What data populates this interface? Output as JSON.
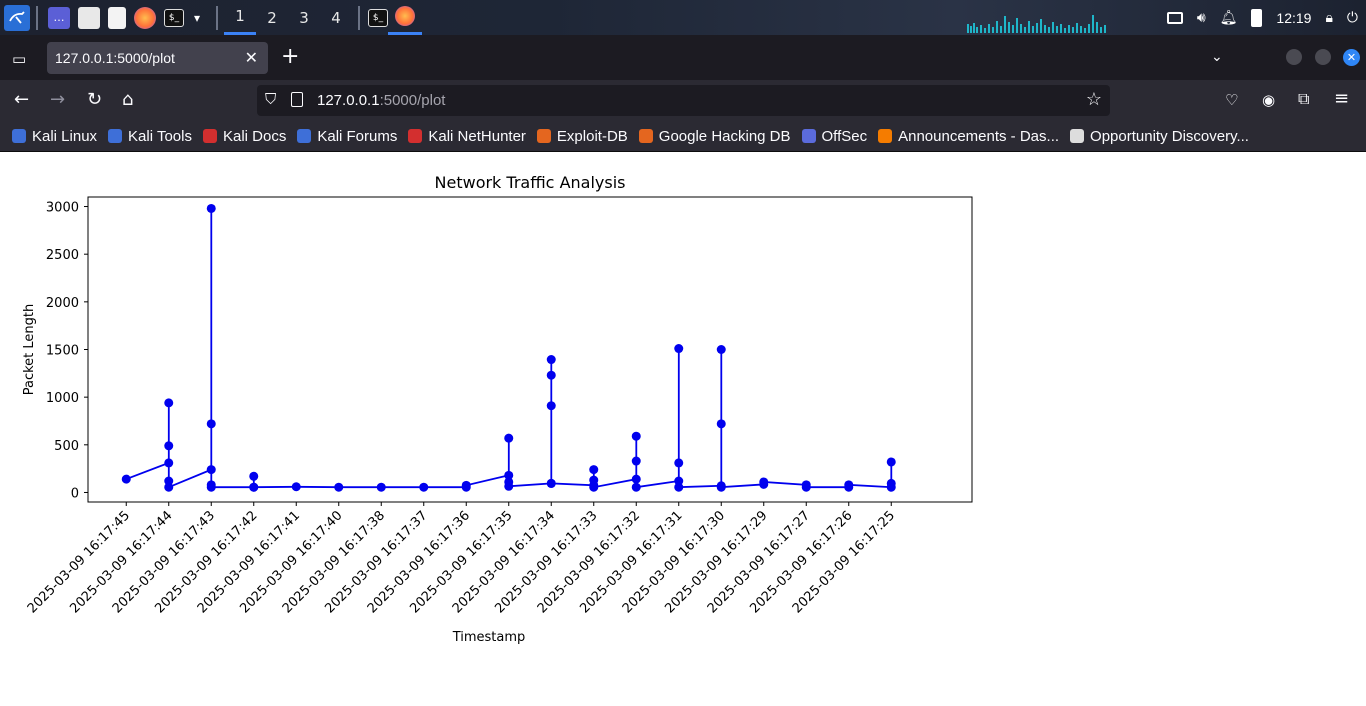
{
  "taskbar": {
    "workspaces": [
      "1",
      "2",
      "3",
      "4"
    ],
    "active_workspace": "1",
    "clock": "12:19"
  },
  "browser": {
    "tab_title": "127.0.0.1:5000/plot",
    "url_host": "127.0.0.1",
    "url_path": ":5000/plot",
    "bookmarks": [
      {
        "label": "Kali Linux",
        "icon": "kali-icon"
      },
      {
        "label": "Kali Tools",
        "icon": "kali-tools-icon"
      },
      {
        "label": "Kali Docs",
        "icon": "kali-docs-icon"
      },
      {
        "label": "Kali Forums",
        "icon": "kali-forums-icon"
      },
      {
        "label": "Kali NetHunter",
        "icon": "nethunter-icon"
      },
      {
        "label": "Exploit-DB",
        "icon": "exploitdb-icon"
      },
      {
        "label": "Google Hacking DB",
        "icon": "ghdb-icon"
      },
      {
        "label": "OffSec",
        "icon": "offsec-icon"
      },
      {
        "label": "Announcements - Das...",
        "icon": "announcements-icon"
      },
      {
        "label": "Opportunity Discovery...",
        "icon": "opportunity-icon"
      }
    ]
  },
  "chart_data": {
    "type": "line",
    "title": "Network Traffic Analysis",
    "xlabel": "Timestamp",
    "ylabel": "Packet Length",
    "ylim": [
      -100,
      3100
    ],
    "yticks": [
      0,
      500,
      1000,
      1500,
      2000,
      2500,
      3000
    ],
    "categories": [
      "2025-03-09 16:17:45",
      "2025-03-09 16:17:44",
      "2025-03-09 16:17:43",
      "2025-03-09 16:17:42",
      "2025-03-09 16:17:41",
      "2025-03-09 16:17:40",
      "2025-03-09 16:17:38",
      "2025-03-09 16:17:37",
      "2025-03-09 16:17:36",
      "2025-03-09 16:17:35",
      "2025-03-09 16:17:34",
      "2025-03-09 16:17:33",
      "2025-03-09 16:17:32",
      "2025-03-09 16:17:31",
      "2025-03-09 16:17:30",
      "2025-03-09 16:17:29",
      "2025-03-09 16:17:27",
      "2025-03-09 16:17:26",
      "2025-03-09 16:17:25"
    ],
    "series": [
      {
        "color": "#0000ee",
        "points": [
          [
            -1,
            140
          ],
          [
            0,
            310
          ],
          [
            0,
            940
          ],
          [
            0,
            490
          ],
          [
            0,
            120
          ],
          [
            0,
            55
          ],
          [
            1,
            240
          ],
          [
            1,
            2980
          ],
          [
            1,
            720
          ],
          [
            1,
            80
          ],
          [
            1,
            55
          ],
          [
            2,
            55
          ],
          [
            2,
            170
          ],
          [
            2,
            55
          ],
          [
            3,
            60
          ],
          [
            4,
            55
          ],
          [
            5,
            55
          ],
          [
            6,
            55
          ],
          [
            7,
            55
          ],
          [
            7,
            75
          ],
          [
            8,
            180
          ],
          [
            8,
            570
          ],
          [
            8,
            110
          ],
          [
            8,
            65
          ],
          [
            9,
            95
          ],
          [
            9,
            1395
          ],
          [
            9,
            1230
          ],
          [
            9,
            910
          ],
          [
            9,
            95
          ],
          [
            10,
            75
          ],
          [
            10,
            240
          ],
          [
            10,
            130
          ],
          [
            10,
            55
          ],
          [
            11,
            140
          ],
          [
            11,
            590
          ],
          [
            11,
            330
          ],
          [
            11,
            55
          ],
          [
            12,
            120
          ],
          [
            12,
            1510
          ],
          [
            12,
            310
          ],
          [
            12,
            55
          ],
          [
            13,
            70
          ],
          [
            13,
            1500
          ],
          [
            13,
            720
          ],
          [
            13,
            55
          ],
          [
            14,
            85
          ],
          [
            14,
            110
          ],
          [
            15,
            80
          ],
          [
            15,
            55
          ],
          [
            16,
            55
          ],
          [
            16,
            80
          ],
          [
            17,
            55
          ],
          [
            17,
            320
          ],
          [
            17,
            95
          ]
        ]
      }
    ]
  }
}
